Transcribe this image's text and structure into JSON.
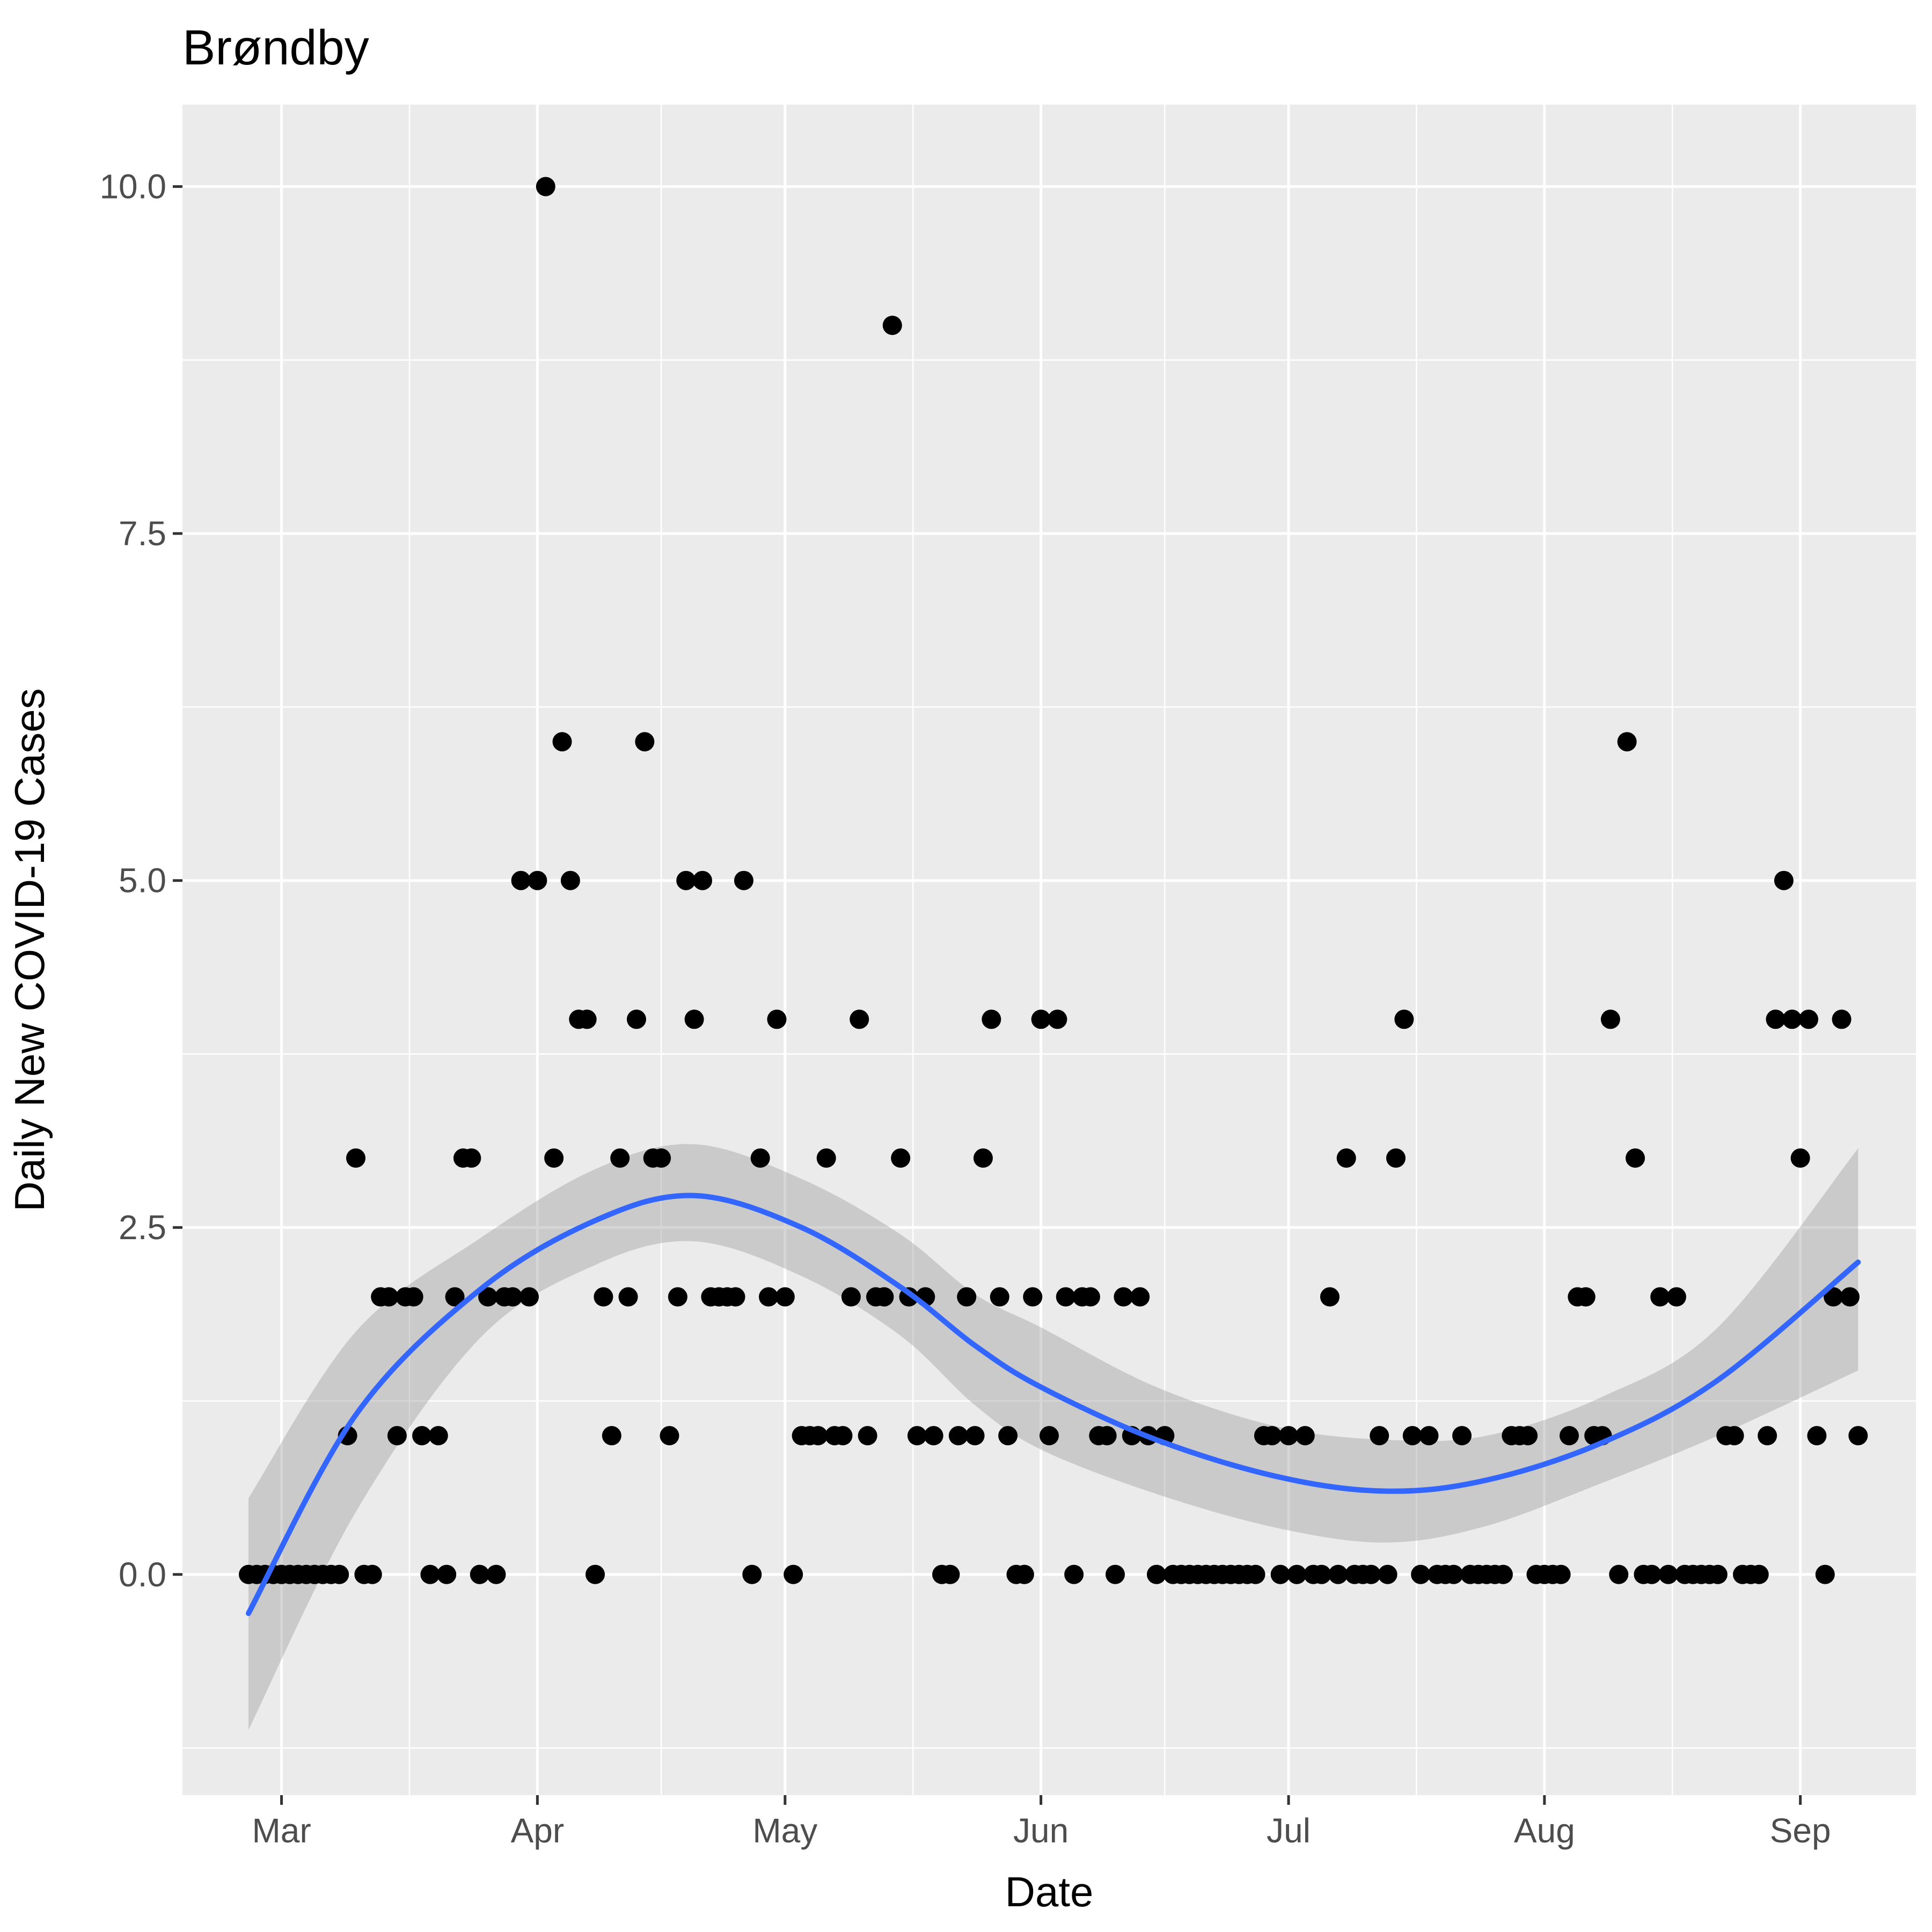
{
  "chart_data": {
    "type": "scatter",
    "title": "Brøndby",
    "xlabel": "Date",
    "ylabel": "Daily New COVID-19 Cases",
    "xlim": [
      "2020-02-18",
      "2020-09-15"
    ],
    "ylim": [
      -1.59,
      10.59
    ],
    "x_ticks": [
      {
        "date": "2020-03-01",
        "label": "Mar"
      },
      {
        "date": "2020-04-01",
        "label": "Apr"
      },
      {
        "date": "2020-05-01",
        "label": "May"
      },
      {
        "date": "2020-06-01",
        "label": "Jun"
      },
      {
        "date": "2020-07-01",
        "label": "Jul"
      },
      {
        "date": "2020-08-01",
        "label": "Aug"
      },
      {
        "date": "2020-09-01",
        "label": "Sep"
      }
    ],
    "y_ticks": [
      {
        "value": 0,
        "label": "0.0"
      },
      {
        "value": 2.5,
        "label": "2.5"
      },
      {
        "value": 5,
        "label": "5.0"
      },
      {
        "value": 7.5,
        "label": "7.5"
      },
      {
        "value": 10,
        "label": "10.0"
      }
    ],
    "grid": true,
    "legend": "none",
    "colors": {
      "points": "#000000",
      "smooth": "#3366ff",
      "band": "#999999",
      "panel": "#ebebeb"
    },
    "points": [
      [
        "2020-02-26",
        0
      ],
      [
        "2020-02-27",
        0
      ],
      [
        "2020-02-28",
        0
      ],
      [
        "2020-02-29",
        0
      ],
      [
        "2020-03-01",
        0
      ],
      [
        "2020-03-02",
        0
      ],
      [
        "2020-03-03",
        0
      ],
      [
        "2020-03-04",
        0
      ],
      [
        "2020-03-05",
        0
      ],
      [
        "2020-03-06",
        0
      ],
      [
        "2020-03-07",
        0
      ],
      [
        "2020-03-08",
        0
      ],
      [
        "2020-03-09",
        1
      ],
      [
        "2020-03-10",
        3
      ],
      [
        "2020-03-11",
        0
      ],
      [
        "2020-03-12",
        0
      ],
      [
        "2020-03-13",
        2
      ],
      [
        "2020-03-14",
        2
      ],
      [
        "2020-03-15",
        1
      ],
      [
        "2020-03-16",
        2
      ],
      [
        "2020-03-17",
        2
      ],
      [
        "2020-03-18",
        1
      ],
      [
        "2020-03-19",
        0
      ],
      [
        "2020-03-20",
        1
      ],
      [
        "2020-03-21",
        0
      ],
      [
        "2020-03-22",
        2
      ],
      [
        "2020-03-23",
        3
      ],
      [
        "2020-03-24",
        3
      ],
      [
        "2020-03-25",
        0
      ],
      [
        "2020-03-26",
        2
      ],
      [
        "2020-03-27",
        0
      ],
      [
        "2020-03-28",
        2
      ],
      [
        "2020-03-29",
        2
      ],
      [
        "2020-03-30",
        5
      ],
      [
        "2020-03-31",
        2
      ],
      [
        "2020-04-01",
        5
      ],
      [
        "2020-04-02",
        10
      ],
      [
        "2020-04-03",
        3
      ],
      [
        "2020-04-04",
        6
      ],
      [
        "2020-04-05",
        5
      ],
      [
        "2020-04-06",
        4
      ],
      [
        "2020-04-07",
        4
      ],
      [
        "2020-04-08",
        0
      ],
      [
        "2020-04-09",
        2
      ],
      [
        "2020-04-10",
        1
      ],
      [
        "2020-04-11",
        3
      ],
      [
        "2020-04-12",
        2
      ],
      [
        "2020-04-13",
        4
      ],
      [
        "2020-04-14",
        6
      ],
      [
        "2020-04-15",
        3
      ],
      [
        "2020-04-16",
        3
      ],
      [
        "2020-04-17",
        1
      ],
      [
        "2020-04-18",
        2
      ],
      [
        "2020-04-19",
        5
      ],
      [
        "2020-04-20",
        4
      ],
      [
        "2020-04-21",
        5
      ],
      [
        "2020-04-22",
        2
      ],
      [
        "2020-04-23",
        2
      ],
      [
        "2020-04-24",
        2
      ],
      [
        "2020-04-25",
        2
      ],
      [
        "2020-04-26",
        5
      ],
      [
        "2020-04-27",
        0
      ],
      [
        "2020-04-28",
        3
      ],
      [
        "2020-04-29",
        2
      ],
      [
        "2020-04-30",
        4
      ],
      [
        "2020-05-01",
        2
      ],
      [
        "2020-05-02",
        0
      ],
      [
        "2020-05-03",
        1
      ],
      [
        "2020-05-04",
        1
      ],
      [
        "2020-05-05",
        1
      ],
      [
        "2020-05-06",
        3
      ],
      [
        "2020-05-07",
        1
      ],
      [
        "2020-05-08",
        1
      ],
      [
        "2020-05-09",
        2
      ],
      [
        "2020-05-10",
        4
      ],
      [
        "2020-05-11",
        1
      ],
      [
        "2020-05-12",
        2
      ],
      [
        "2020-05-13",
        2
      ],
      [
        "2020-05-14",
        9
      ],
      [
        "2020-05-15",
        3
      ],
      [
        "2020-05-16",
        2
      ],
      [
        "2020-05-17",
        1
      ],
      [
        "2020-05-18",
        2
      ],
      [
        "2020-05-19",
        1
      ],
      [
        "2020-05-20",
        0
      ],
      [
        "2020-05-21",
        0
      ],
      [
        "2020-05-22",
        1
      ],
      [
        "2020-05-23",
        2
      ],
      [
        "2020-05-24",
        1
      ],
      [
        "2020-05-25",
        3
      ],
      [
        "2020-05-26",
        4
      ],
      [
        "2020-05-27",
        2
      ],
      [
        "2020-05-28",
        1
      ],
      [
        "2020-05-29",
        0
      ],
      [
        "2020-05-30",
        0
      ],
      [
        "2020-05-31",
        2
      ],
      [
        "2020-06-01",
        4
      ],
      [
        "2020-06-02",
        1
      ],
      [
        "2020-06-03",
        4
      ],
      [
        "2020-06-04",
        2
      ],
      [
        "2020-06-05",
        0
      ],
      [
        "2020-06-06",
        2
      ],
      [
        "2020-06-07",
        2
      ],
      [
        "2020-06-08",
        1
      ],
      [
        "2020-06-09",
        1
      ],
      [
        "2020-06-10",
        0
      ],
      [
        "2020-06-11",
        2
      ],
      [
        "2020-06-12",
        1
      ],
      [
        "2020-06-13",
        2
      ],
      [
        "2020-06-14",
        1
      ],
      [
        "2020-06-15",
        0
      ],
      [
        "2020-06-16",
        1
      ],
      [
        "2020-06-17",
        0
      ],
      [
        "2020-06-18",
        0
      ],
      [
        "2020-06-19",
        0
      ],
      [
        "2020-06-20",
        0
      ],
      [
        "2020-06-21",
        0
      ],
      [
        "2020-06-22",
        0
      ],
      [
        "2020-06-23",
        0
      ],
      [
        "2020-06-24",
        0
      ],
      [
        "2020-06-25",
        0
      ],
      [
        "2020-06-26",
        0
      ],
      [
        "2020-06-27",
        0
      ],
      [
        "2020-06-28",
        1
      ],
      [
        "2020-06-29",
        1
      ],
      [
        "2020-06-30",
        0
      ],
      [
        "2020-07-01",
        1
      ],
      [
        "2020-07-02",
        0
      ],
      [
        "2020-07-03",
        1
      ],
      [
        "2020-07-04",
        0
      ],
      [
        "2020-07-05",
        0
      ],
      [
        "2020-07-06",
        2
      ],
      [
        "2020-07-07",
        0
      ],
      [
        "2020-07-08",
        3
      ],
      [
        "2020-07-09",
        0
      ],
      [
        "2020-07-10",
        0
      ],
      [
        "2020-07-11",
        0
      ],
      [
        "2020-07-12",
        1
      ],
      [
        "2020-07-13",
        0
      ],
      [
        "2020-07-14",
        3
      ],
      [
        "2020-07-15",
        4
      ],
      [
        "2020-07-16",
        1
      ],
      [
        "2020-07-17",
        0
      ],
      [
        "2020-07-18",
        1
      ],
      [
        "2020-07-19",
        0
      ],
      [
        "2020-07-20",
        0
      ],
      [
        "2020-07-21",
        0
      ],
      [
        "2020-07-22",
        1
      ],
      [
        "2020-07-23",
        0
      ],
      [
        "2020-07-24",
        0
      ],
      [
        "2020-07-25",
        0
      ],
      [
        "2020-07-26",
        0
      ],
      [
        "2020-07-27",
        0
      ],
      [
        "2020-07-28",
        1
      ],
      [
        "2020-07-29",
        1
      ],
      [
        "2020-07-30",
        1
      ],
      [
        "2020-07-31",
        0
      ],
      [
        "2020-08-01",
        0
      ],
      [
        "2020-08-02",
        0
      ],
      [
        "2020-08-03",
        0
      ],
      [
        "2020-08-04",
        1
      ],
      [
        "2020-08-05",
        2
      ],
      [
        "2020-08-06",
        2
      ],
      [
        "2020-08-07",
        1
      ],
      [
        "2020-08-08",
        1
      ],
      [
        "2020-08-09",
        4
      ],
      [
        "2020-08-10",
        0
      ],
      [
        "2020-08-11",
        6
      ],
      [
        "2020-08-12",
        3
      ],
      [
        "2020-08-13",
        0
      ],
      [
        "2020-08-14",
        0
      ],
      [
        "2020-08-15",
        2
      ],
      [
        "2020-08-16",
        0
      ],
      [
        "2020-08-17",
        2
      ],
      [
        "2020-08-18",
        0
      ],
      [
        "2020-08-19",
        0
      ],
      [
        "2020-08-20",
        0
      ],
      [
        "2020-08-21",
        0
      ],
      [
        "2020-08-22",
        0
      ],
      [
        "2020-08-23",
        1
      ],
      [
        "2020-08-24",
        1
      ],
      [
        "2020-08-25",
        0
      ],
      [
        "2020-08-26",
        0
      ],
      [
        "2020-08-27",
        0
      ],
      [
        "2020-08-28",
        1
      ],
      [
        "2020-08-29",
        4
      ],
      [
        "2020-08-30",
        5
      ],
      [
        "2020-08-31",
        4
      ],
      [
        "2020-09-01",
        3
      ],
      [
        "2020-09-02",
        4
      ],
      [
        "2020-09-03",
        1
      ],
      [
        "2020-09-04",
        0
      ],
      [
        "2020-09-05",
        2
      ],
      [
        "2020-09-06",
        4
      ],
      [
        "2020-09-07",
        2
      ],
      [
        "2020-09-08",
        1
      ]
    ],
    "smooth": {
      "method": "loess",
      "x": [
        "2020-02-26",
        "2020-03-10",
        "2020-03-25",
        "2020-04-08",
        "2020-04-20",
        "2020-05-03",
        "2020-05-15",
        "2020-05-24",
        "2020-06-01",
        "2020-06-15",
        "2020-06-30",
        "2020-07-13",
        "2020-07-25",
        "2020-08-08",
        "2020-08-22",
        "2020-09-08"
      ],
      "y": [
        -0.28,
        1.15,
        2.05,
        2.55,
        2.73,
        2.5,
        2.07,
        1.65,
        1.35,
        0.97,
        0.7,
        0.6,
        0.68,
        0.95,
        1.4,
        2.25
      ],
      "ymin": [
        -1.12,
        0.45,
        1.7,
        2.23,
        2.4,
        2.15,
        1.72,
        1.22,
        0.9,
        0.58,
        0.33,
        0.23,
        0.35,
        0.66,
        1.0,
        1.47
      ],
      "ymax": [
        0.55,
        1.75,
        2.42,
        2.92,
        3.1,
        2.85,
        2.45,
        2.02,
        1.78,
        1.35,
        1.06,
        0.97,
        1.0,
        1.28,
        1.78,
        3.07
      ]
    }
  }
}
